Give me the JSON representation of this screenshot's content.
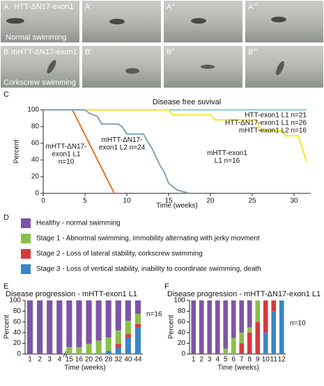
{
  "photo_rows": [
    {
      "labels": [
        "A",
        "A'",
        "A''",
        "A'''"
      ],
      "line": "HTT-ΔN17-exon1",
      "caption": "Normal swimming"
    },
    {
      "labels": [
        "B",
        "B'",
        "B''",
        "B'''"
      ],
      "line": "mHTT-ΔN17-exon1",
      "caption": "Corkscrew swimming"
    }
  ],
  "panel_labels": [
    "C",
    "D",
    "E",
    "F"
  ],
  "chart_data": [
    {
      "type": "line",
      "title": "Disease free suvival",
      "x_label": "Time (weeks)",
      "y_label": "Percent",
      "xlim": [
        0,
        32
      ],
      "xticks": [
        0,
        5,
        10,
        15,
        20,
        25,
        30
      ],
      "ylim": [
        0,
        100
      ],
      "yticks": [
        0,
        20,
        40,
        60,
        80,
        100
      ],
      "series": [
        {
          "name": "HTT-exon1 L1 n=21",
          "color": "#86cdee",
          "x": [
            0,
            31.5
          ],
          "values": [
            100,
            100
          ]
        },
        {
          "name": "HTT-ΔN17-exon1 L1 n=26",
          "color": "#86cdee",
          "x": [
            0,
            31.5
          ],
          "values": [
            100,
            100
          ]
        },
        {
          "name": "mHTT-exon1 L2 n=16",
          "color": "#86cdee",
          "x": [
            0,
            31.5
          ],
          "values": [
            100,
            100
          ]
        },
        {
          "name": "mHTT-exon1 L1 n=16",
          "color": "#f2ea1f",
          "x": [
            0,
            15,
            15.5,
            20,
            20.5,
            25.5,
            26,
            28.5,
            29,
            30.5,
            31.5
          ],
          "values": [
            100,
            100,
            94,
            94,
            88,
            88,
            75,
            75,
            69,
            69,
            38
          ]
        },
        {
          "name": "mHTT-ΔN17-exon1 L1 n=10",
          "color": "#e0782a",
          "x": [
            0,
            3.5,
            4,
            4.5,
            5,
            5.5,
            6,
            6.5,
            7,
            7.5,
            8,
            8.5
          ],
          "values": [
            100,
            100,
            90,
            80,
            70,
            60,
            50,
            40,
            30,
            20,
            10,
            0
          ]
        },
        {
          "name": "mHTT-ΔN17-exon1 L2 n=24",
          "color": "#7fa2bb",
          "x": [
            0,
            5,
            5.5,
            6.5,
            7,
            9,
            9.5,
            10,
            12,
            12.5,
            13,
            14,
            14.5,
            15,
            16,
            17.5
          ],
          "values": [
            100,
            100,
            96,
            92,
            83,
            83,
            79,
            71,
            71,
            62,
            54,
            33,
            25,
            12,
            4,
            0
          ]
        }
      ]
    },
    {
      "type": "bar",
      "stacked": true,
      "title": "Disease progression - mHTT-exon1 L1",
      "x_label": "Time (weeks)",
      "y_label": "Percent",
      "annotation": "n=16",
      "categories": [
        "1",
        "2",
        "3",
        "4",
        "15",
        "16",
        "20",
        "26",
        "28",
        "32",
        "40",
        "44"
      ],
      "ylim": [
        0,
        100
      ],
      "yticks": [
        0,
        20,
        40,
        60,
        80,
        100
      ],
      "series": [
        {
          "name": "Healthy - normal swimming",
          "color": "#7d55a6",
          "values": [
            100,
            100,
            100,
            100,
            87,
            87,
            81,
            75,
            69,
            56,
            38,
            25
          ]
        },
        {
          "name": "Stage 1 - Abnormal swimming, immobility alternating with jerky movment",
          "color": "#8cbf4a",
          "values": [
            0,
            0,
            0,
            0,
            13,
            13,
            19,
            25,
            25,
            25,
            25,
            19
          ]
        },
        {
          "name": "Stage 2 - Loss of lateral stability, corkscrew swimming",
          "color": "#d73a3a",
          "values": [
            0,
            0,
            0,
            0,
            0,
            0,
            0,
            0,
            0,
            6,
            6,
            6
          ]
        },
        {
          "name": "Stage 3 - Loss of vertical stability, inability to coordinate swimming, death",
          "color": "#3a86c6",
          "values": [
            0,
            0,
            0,
            0,
            0,
            0,
            0,
            0,
            6,
            13,
            31,
            50
          ]
        }
      ]
    },
    {
      "type": "bar",
      "stacked": true,
      "title": "Disease progression - mHTT-ΔN17-exon1 L1",
      "x_label": "Time (weeks)",
      "y_label": "Percent",
      "annotation": "n=10",
      "categories": [
        "1",
        "2",
        "3",
        "4",
        "5",
        "6",
        "7",
        "8",
        "9",
        "10",
        "11",
        "12"
      ],
      "ylim": [
        0,
        100
      ],
      "yticks": [
        0,
        20,
        40,
        60,
        80,
        100
      ],
      "series": [
        {
          "color": "#7d55a6",
          "values": [
            100,
            100,
            100,
            100,
            90,
            70,
            60,
            50,
            0,
            0,
            0,
            0
          ]
        },
        {
          "color": "#8cbf4a",
          "values": [
            0,
            0,
            0,
            0,
            10,
            30,
            20,
            10,
            40,
            0,
            0,
            0
          ]
        },
        {
          "color": "#d73a3a",
          "values": [
            0,
            0,
            0,
            0,
            0,
            0,
            20,
            40,
            60,
            60,
            20,
            0
          ]
        },
        {
          "color": "#3a86c6",
          "values": [
            0,
            0,
            0,
            0,
            0,
            0,
            0,
            0,
            0,
            40,
            80,
            100
          ]
        }
      ]
    }
  ]
}
